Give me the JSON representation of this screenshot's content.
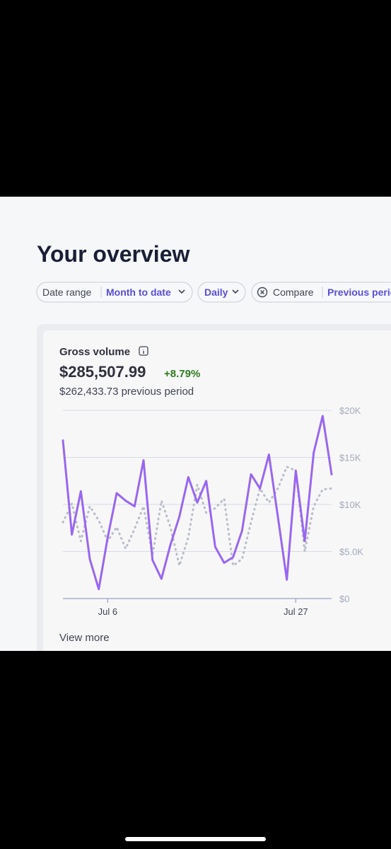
{
  "header": {
    "title": "Your overview"
  },
  "filters": {
    "date_range_label": "Date range",
    "date_range_value": "Month to date",
    "interval": "Daily",
    "compare_label": "Compare",
    "compare_value": "Previous period"
  },
  "card": {
    "title": "Gross volume",
    "amount": "$285,507.99",
    "change": "+8.79%",
    "previous": "$262,433.73 previous period",
    "link": "View more",
    "chart_data": {
      "type": "line",
      "categories": [
        null,
        null,
        null,
        null,
        null,
        "Jul 6",
        null,
        null,
        null,
        null,
        null,
        null,
        null,
        null,
        null,
        null,
        null,
        null,
        null,
        null,
        null,
        null,
        null,
        null,
        null,
        null,
        "Jul 27",
        null,
        null,
        null,
        null
      ],
      "series": [
        {
          "color": "#b9bdc8",
          "style": "dotted",
          "values": [
            8100,
            10100,
            6100,
            9800,
            8300,
            6100,
            7600,
            5300,
            7400,
            9800,
            4600,
            10400,
            7600,
            3500,
            6500,
            12100,
            9100,
            9600,
            10600,
            3500,
            4200,
            8100,
            11700,
            10200,
            11700,
            14000,
            13600,
            5000,
            9800,
            11600,
            11700
          ]
        },
        {
          "color": "#9966f2",
          "style": "solid",
          "values": [
            16800,
            6800,
            11400,
            4200,
            1000,
            6500,
            11200,
            10400,
            9800,
            14700,
            4100,
            2100,
            5700,
            8700,
            12900,
            10200,
            12500,
            5500,
            3800,
            4400,
            7200,
            13200,
            11700,
            15300,
            8700,
            2000,
            13600,
            6100,
            15500,
            19400,
            13200
          ]
        }
      ],
      "ylim": [
        0,
        20000
      ],
      "yticks": [
        {
          "value": 0,
          "label": "$0"
        },
        {
          "value": 5000,
          "label": "$5.0K"
        },
        {
          "value": 10000,
          "label": "$10K"
        },
        {
          "value": 15000,
          "label": "$15K"
        },
        {
          "value": 20000,
          "label": "$20K"
        }
      ],
      "grid": true
    }
  }
}
